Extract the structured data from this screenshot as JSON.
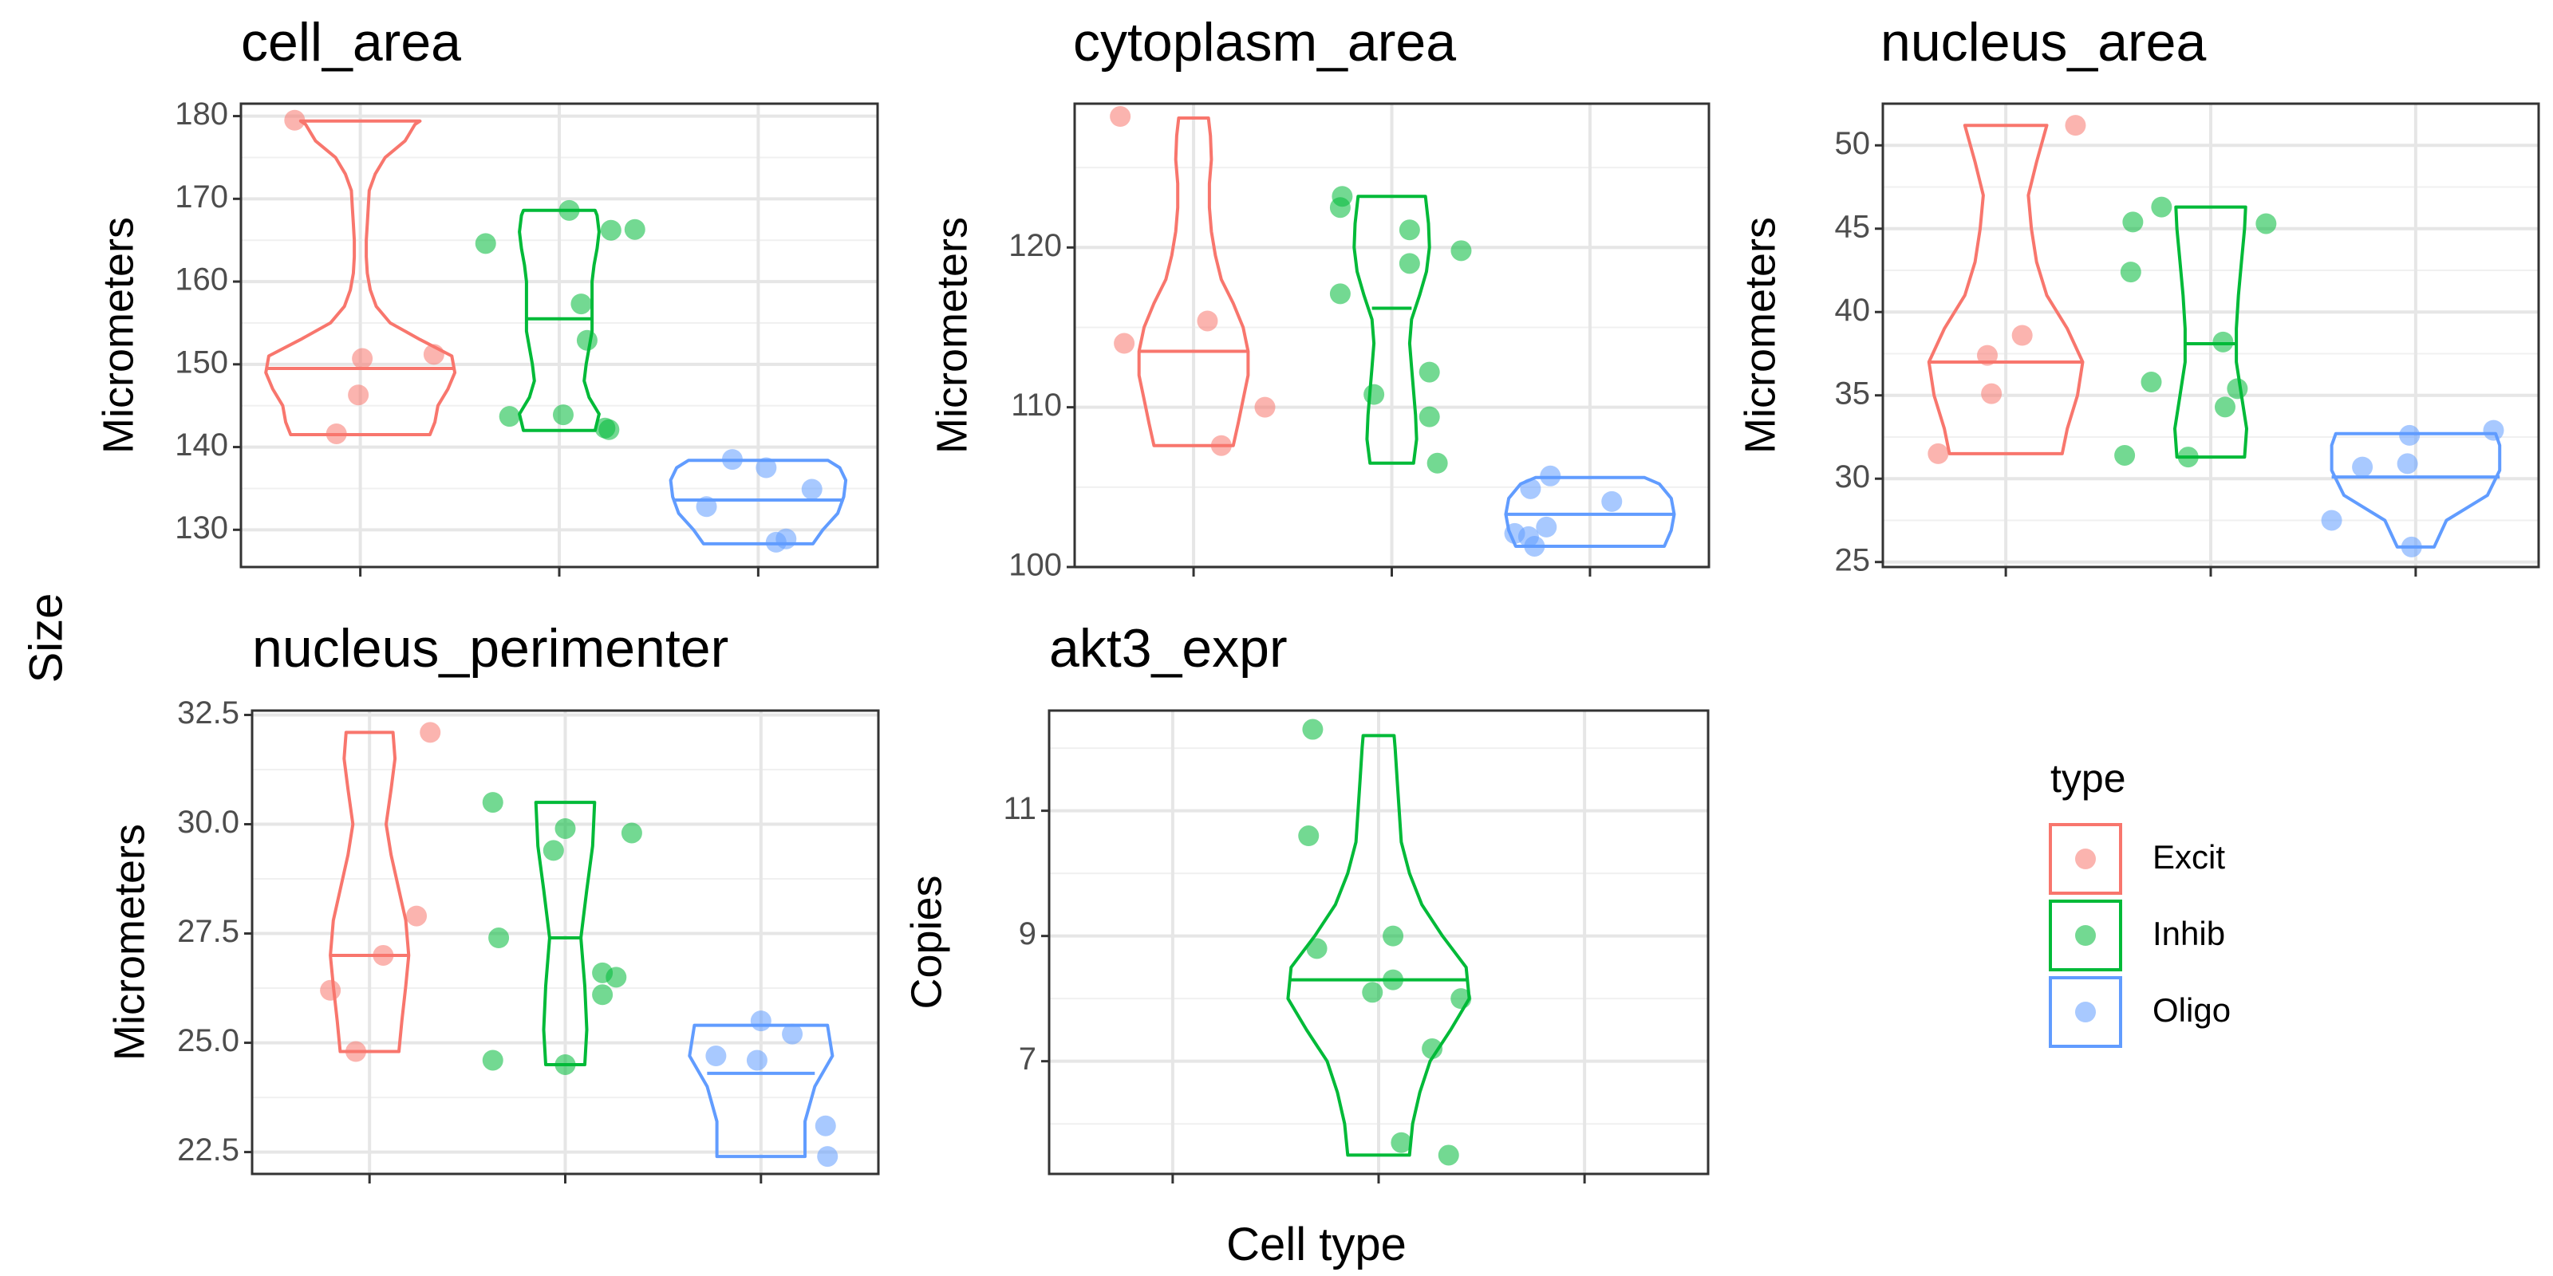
{
  "figure": {
    "global_xlabel": "Cell type",
    "global_ylabel": "Size"
  },
  "legend": {
    "title": "type",
    "items": [
      {
        "label": "Excit",
        "color": "#F8766D"
      },
      {
        "label": "Inhib",
        "color": "#00BA38"
      },
      {
        "label": "Oligo",
        "color": "#619CFF"
      }
    ]
  },
  "chart_data": [
    {
      "type": "violin",
      "title": "cell_area",
      "ylabel": "Micrometers",
      "ylim": [
        125.5,
        181.5
      ],
      "yticks": [
        130,
        140,
        150,
        160,
        170,
        180
      ],
      "groups": [
        {
          "type": "Excit",
          "median": 149.5,
          "profile": [
            [
              141.5,
              0.7
            ],
            [
              143,
              0.75
            ],
            [
              145,
              0.78
            ],
            [
              147,
              0.88
            ],
            [
              149,
              0.95
            ],
            [
              151,
              0.92
            ],
            [
              153,
              0.6
            ],
            [
              155,
              0.3
            ],
            [
              157,
              0.16
            ],
            [
              159,
              0.1
            ],
            [
              161,
              0.07
            ],
            [
              163,
              0.06
            ],
            [
              165,
              0.06
            ],
            [
              167,
              0.07
            ],
            [
              169,
              0.08
            ],
            [
              171,
              0.09
            ],
            [
              173,
              0.15
            ],
            [
              175,
              0.25
            ],
            [
              177,
              0.45
            ],
            [
              179,
              0.55
            ],
            [
              179.4,
              0.6
            ]
          ],
          "points": [
            [
              -0.33,
              179.5
            ],
            [
              0.01,
              150.7
            ],
            [
              -0.01,
              146.3
            ],
            [
              -0.12,
              141.6
            ],
            [
              0.37,
              151.2
            ]
          ]
        },
        {
          "type": "Inhib",
          "median": 155.5,
          "profile": [
            [
              142,
              0.36
            ],
            [
              144,
              0.4
            ],
            [
              146,
              0.3
            ],
            [
              148,
              0.25
            ],
            [
              150,
              0.27
            ],
            [
              152,
              0.3
            ],
            [
              154,
              0.33
            ],
            [
              156,
              0.33
            ],
            [
              158,
              0.33
            ],
            [
              160,
              0.33
            ],
            [
              162,
              0.35
            ],
            [
              164,
              0.38
            ],
            [
              166,
              0.4
            ],
            [
              168,
              0.38
            ],
            [
              168.6,
              0.36
            ]
          ],
          "points": [
            [
              -0.37,
              164.6
            ],
            [
              -0.25,
              143.7
            ],
            [
              0.02,
              143.9
            ],
            [
              0.05,
              168.6
            ],
            [
              0.11,
              157.3
            ],
            [
              0.14,
              152.9
            ],
            [
              0.23,
              142.3
            ],
            [
              0.26,
              166.2
            ],
            [
              0.25,
              142.1
            ],
            [
              0.38,
              166.3
            ]
          ]
        },
        {
          "type": "Oligo",
          "median": 133.6,
          "profile": [
            [
              128.3,
              0.55
            ],
            [
              130,
              0.65
            ],
            [
              132,
              0.8
            ],
            [
              134,
              0.86
            ],
            [
              136,
              0.88
            ],
            [
              137.5,
              0.82
            ],
            [
              138.4,
              0.7
            ]
          ],
          "points": [
            [
              -0.13,
              138.5
            ],
            [
              -0.26,
              132.8
            ],
            [
              0.04,
              137.5
            ],
            [
              0.09,
              128.5
            ],
            [
              0.14,
              128.9
            ],
            [
              0.27,
              134.9
            ]
          ]
        }
      ]
    },
    {
      "type": "violin",
      "title": "cytoplasm_area",
      "ylabel": "Micrometers",
      "ylim": [
        100,
        129
      ],
      "yticks": [
        100,
        110,
        120
      ],
      "groups": [
        {
          "type": "Excit",
          "median": 113.5,
          "profile": [
            [
              107.6,
              0.4
            ],
            [
              109,
              0.45
            ],
            [
              110.5,
              0.5
            ],
            [
              112,
              0.55
            ],
            [
              113.5,
              0.55
            ],
            [
              115,
              0.5
            ],
            [
              116.5,
              0.4
            ],
            [
              118,
              0.28
            ],
            [
              119.5,
              0.22
            ],
            [
              121,
              0.18
            ],
            [
              122.5,
              0.16
            ],
            [
              124,
              0.16
            ],
            [
              125.5,
              0.18
            ],
            [
              127,
              0.17
            ],
            [
              128.1,
              0.15
            ]
          ],
          "points": [
            [
              -0.37,
              128.2
            ],
            [
              -0.35,
              114.0
            ],
            [
              0.07,
              115.4
            ],
            [
              0.14,
              107.6
            ],
            [
              0.36,
              110.0
            ]
          ]
        },
        {
          "type": "Inhib",
          "median": 116.2,
          "profile": [
            [
              106.5,
              0.22
            ],
            [
              108,
              0.25
            ],
            [
              109.5,
              0.24
            ],
            [
              111,
              0.22
            ],
            [
              112.5,
              0.2
            ],
            [
              114,
              0.18
            ],
            [
              115.5,
              0.2
            ],
            [
              117,
              0.28
            ],
            [
              118.5,
              0.35
            ],
            [
              120,
              0.38
            ],
            [
              121.5,
              0.37
            ],
            [
              123.2,
              0.34
            ]
          ],
          "points": [
            [
              -0.26,
              117.1
            ],
            [
              -0.26,
              122.5
            ],
            [
              -0.25,
              123.2
            ],
            [
              -0.09,
              110.8
            ],
            [
              0.09,
              121.1
            ],
            [
              0.09,
              119.0
            ],
            [
              0.19,
              112.2
            ],
            [
              0.19,
              109.4
            ],
            [
              0.23,
              106.5
            ],
            [
              0.35,
              119.8
            ]
          ]
        },
        {
          "type": "Oligo",
          "median": 103.3,
          "profile": [
            [
              101.3,
              0.75
            ],
            [
              102.3,
              0.82
            ],
            [
              103.3,
              0.85
            ],
            [
              104.3,
              0.82
            ],
            [
              105.2,
              0.7
            ],
            [
              105.6,
              0.55
            ]
          ],
          "points": [
            [
              -0.38,
              102.1
            ],
            [
              -0.31,
              101.9
            ],
            [
              -0.3,
              104.9
            ],
            [
              -0.28,
              101.3
            ],
            [
              -0.22,
              102.5
            ],
            [
              -0.2,
              105.7
            ],
            [
              0.11,
              104.1
            ]
          ]
        }
      ]
    },
    {
      "type": "violin",
      "title": "nucleus_area",
      "ylabel": "Micrometers",
      "ylim": [
        24.7,
        52.5
      ],
      "yticks": [
        25,
        30,
        35,
        40,
        45,
        50
      ],
      "groups": [
        {
          "type": "Excit",
          "median": 37.0,
          "profile": [
            [
              31.5,
              0.55
            ],
            [
              33,
              0.6
            ],
            [
              35,
              0.7
            ],
            [
              37,
              0.75
            ],
            [
              39,
              0.6
            ],
            [
              41,
              0.4
            ],
            [
              43,
              0.3
            ],
            [
              45,
              0.25
            ],
            [
              47,
              0.22
            ],
            [
              49,
              0.3
            ],
            [
              51.2,
              0.4
            ]
          ],
          "points": [
            [
              -0.33,
              31.5
            ],
            [
              -0.09,
              37.4
            ],
            [
              -0.07,
              35.1
            ],
            [
              0.08,
              38.6
            ],
            [
              0.34,
              51.2
            ]
          ]
        },
        {
          "type": "Inhib",
          "median": 38.1,
          "profile": [
            [
              31.3,
              0.33
            ],
            [
              33,
              0.35
            ],
            [
              35,
              0.3
            ],
            [
              37,
              0.25
            ],
            [
              39,
              0.25
            ],
            [
              41,
              0.27
            ],
            [
              43,
              0.3
            ],
            [
              45,
              0.33
            ],
            [
              46.3,
              0.34
            ]
          ],
          "points": [
            [
              -0.42,
              31.4
            ],
            [
              -0.38,
              45.4
            ],
            [
              -0.39,
              42.4
            ],
            [
              -0.29,
              35.8
            ],
            [
              -0.24,
              46.3
            ],
            [
              -0.11,
              31.3
            ],
            [
              0.06,
              38.2
            ],
            [
              0.07,
              34.3
            ],
            [
              0.13,
              35.4
            ],
            [
              0.27,
              45.3
            ]
          ]
        },
        {
          "type": "Oligo",
          "median": 30.1,
          "profile": [
            [
              25.9,
              0.18
            ],
            [
              27.5,
              0.3
            ],
            [
              29,
              0.7
            ],
            [
              30.5,
              0.82
            ],
            [
              32,
              0.82
            ],
            [
              32.7,
              0.78
            ]
          ],
          "points": [
            [
              -0.41,
              27.5
            ],
            [
              -0.26,
              30.7
            ],
            [
              -0.04,
              30.9
            ],
            [
              -0.03,
              32.6
            ],
            [
              -0.02,
              25.9
            ],
            [
              0.38,
              32.9
            ]
          ]
        }
      ]
    },
    {
      "type": "violin",
      "title": "nucleus_perimenter",
      "ylabel": "Micrometers",
      "ylim": [
        22,
        32.6
      ],
      "yticks": [
        22.5,
        25.0,
        27.5,
        30.0,
        32.5
      ],
      "groups": [
        {
          "type": "Excit",
          "median": 27.0,
          "profile": [
            [
              24.8,
              0.3
            ],
            [
              25.5,
              0.33
            ],
            [
              26.3,
              0.37
            ],
            [
              27,
              0.4
            ],
            [
              27.8,
              0.37
            ],
            [
              28.5,
              0.3
            ],
            [
              29.3,
              0.22
            ],
            [
              30,
              0.17
            ],
            [
              30.8,
              0.22
            ],
            [
              31.5,
              0.26
            ],
            [
              32.1,
              0.24
            ]
          ],
          "points": [
            [
              -0.2,
              26.2
            ],
            [
              -0.07,
              24.8
            ],
            [
              0.07,
              27.0
            ],
            [
              0.24,
              27.9
            ],
            [
              0.31,
              32.1
            ]
          ]
        },
        {
          "type": "Inhib",
          "median": 27.4,
          "profile": [
            [
              24.5,
              0.2
            ],
            [
              25.3,
              0.22
            ],
            [
              26.3,
              0.2
            ],
            [
              27.4,
              0.16
            ],
            [
              28.5,
              0.22
            ],
            [
              29.5,
              0.28
            ],
            [
              30.5,
              0.3
            ]
          ],
          "points": [
            [
              -0.37,
              30.5
            ],
            [
              -0.34,
              27.4
            ],
            [
              -0.37,
              24.6
            ],
            [
              -0.06,
              29.4
            ],
            [
              0.0,
              29.9
            ],
            [
              0.0,
              24.5
            ],
            [
              0.19,
              26.6
            ],
            [
              0.19,
              26.1
            ],
            [
              0.26,
              26.5
            ],
            [
              0.34,
              29.8
            ]
          ]
        },
        {
          "type": "Oligo",
          "median": 24.3,
          "profile": [
            [
              22.4,
              0.45
            ],
            [
              23.2,
              0.45
            ],
            [
              24,
              0.55
            ],
            [
              24.7,
              0.73
            ],
            [
              25.4,
              0.68
            ]
          ],
          "points": [
            [
              -0.23,
              24.7
            ],
            [
              -0.02,
              24.6
            ],
            [
              0.0,
              25.5
            ],
            [
              0.16,
              25.2
            ],
            [
              0.33,
              23.1
            ],
            [
              0.34,
              22.4
            ]
          ]
        }
      ]
    },
    {
      "type": "violin",
      "title": "akt3_expr",
      "ylabel": "Copies",
      "ylim": [
        5.2,
        12.6
      ],
      "yticks": [
        7,
        9,
        11
      ],
      "groups": [
        {
          "type": "Inhib",
          "median": 8.3,
          "profile": [
            [
              5.5,
              0.3
            ],
            [
              6,
              0.33
            ],
            [
              6.5,
              0.4
            ],
            [
              7,
              0.5
            ],
            [
              7.5,
              0.7
            ],
            [
              8,
              0.88
            ],
            [
              8.5,
              0.85
            ],
            [
              9,
              0.62
            ],
            [
              9.5,
              0.42
            ],
            [
              10,
              0.3
            ],
            [
              10.5,
              0.22
            ],
            [
              11,
              0.2
            ],
            [
              11.5,
              0.18
            ],
            [
              12,
              0.16
            ],
            [
              12.2,
              0.15
            ]
          ],
          "points": [
            [
              -0.32,
              12.3
            ],
            [
              -0.34,
              10.6
            ],
            [
              -0.3,
              8.8
            ],
            [
              -0.03,
              8.1
            ],
            [
              0.07,
              8.3
            ],
            [
              0.07,
              9.0
            ],
            [
              0.11,
              5.7
            ],
            [
              0.26,
              7.2
            ],
            [
              0.34,
              5.5
            ],
            [
              0.4,
              8.0
            ]
          ]
        }
      ]
    }
  ]
}
